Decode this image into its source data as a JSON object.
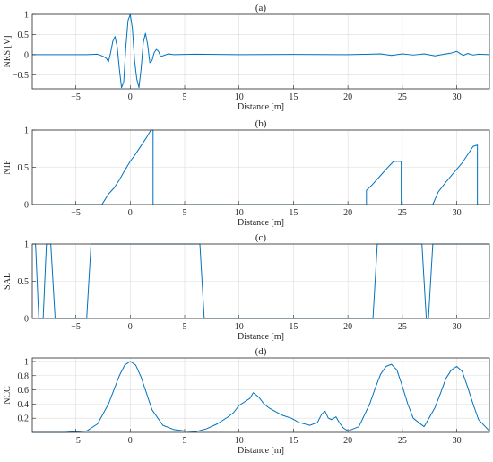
{
  "colors": {
    "series": "#0072BD",
    "axis": "#262626",
    "grid": "#dcdcdc"
  },
  "chart_data": [
    {
      "type": "line",
      "title": "(a)",
      "xlabel": "Distance [m]",
      "ylabel": "NRS [V]",
      "xlim": [
        -9,
        33
      ],
      "ylim": [
        -0.85,
        1.0
      ],
      "xticks": [
        -5,
        0,
        5,
        10,
        15,
        20,
        25,
        30
      ],
      "yticks": [
        -0.5,
        0,
        0.5,
        1
      ],
      "grid": true,
      "series": [
        {
          "x": [
            -9,
            -4,
            -3,
            -2.5,
            -2.2,
            -2.0,
            -1.8,
            -1.6,
            -1.4,
            -1.2,
            -1.0,
            -0.8,
            -0.6,
            -0.4,
            -0.2,
            0,
            0.2,
            0.4,
            0.6,
            0.8,
            1.0,
            1.2,
            1.4,
            1.6,
            1.8,
            2.0,
            2.2,
            2.4,
            2.6,
            2.8,
            3.0,
            3.5,
            4,
            6,
            10,
            15,
            20,
            22,
            23,
            24,
            25,
            26,
            27,
            28,
            29,
            29.5,
            30,
            30.3,
            30.6,
            31,
            31.5,
            32,
            33
          ],
          "y": [
            0,
            0,
            0.01,
            -0.04,
            -0.09,
            -0.18,
            0.05,
            0.33,
            0.45,
            0.2,
            -0.35,
            -0.82,
            -0.68,
            0.2,
            0.85,
            1.0,
            0.65,
            -0.15,
            -0.6,
            -0.82,
            -0.35,
            0.3,
            0.53,
            0.25,
            -0.2,
            -0.15,
            0.05,
            0.13,
            0.08,
            -0.05,
            -0.03,
            0.02,
            0,
            0.01,
            0,
            0.005,
            0,
            0.01,
            0.02,
            -0.02,
            0.02,
            -0.01,
            0.02,
            -0.03,
            0.02,
            0.04,
            0.08,
            0.03,
            -0.02,
            0.03,
            -0.01,
            0.01,
            0
          ]
        }
      ]
    },
    {
      "type": "line",
      "title": "(b)",
      "xlabel": "Distance [m]",
      "ylabel": "NIF",
      "xlim": [
        -9,
        33
      ],
      "ylim": [
        0,
        1
      ],
      "xticks": [
        -5,
        0,
        5,
        10,
        15,
        20,
        25,
        30
      ],
      "yticks": [
        0,
        0.5,
        1
      ],
      "grid": true,
      "series": [
        {
          "x": [
            -9,
            -2.6,
            -2.3,
            -2.0,
            -1.5,
            -1.0,
            -0.5,
            0,
            0.5,
            1.0,
            1.5,
            1.9,
            2.1,
            2.1,
            2.2,
            21.7,
            21.7,
            22.2,
            23.0,
            23.8,
            24.2,
            24.9,
            24.9,
            25.0,
            27.8,
            28.3,
            29.0,
            29.8,
            30.5,
            31.0,
            31.5,
            31.9,
            31.9,
            32.1,
            33
          ],
          "y": [
            0,
            0,
            0.07,
            0.14,
            0.22,
            0.33,
            0.46,
            0.58,
            0.68,
            0.79,
            0.9,
            1.0,
            1.0,
            0.0,
            0.0,
            0.0,
            0.19,
            0.26,
            0.39,
            0.52,
            0.58,
            0.58,
            0.0,
            0.0,
            0.0,
            0.17,
            0.3,
            0.44,
            0.56,
            0.67,
            0.78,
            0.8,
            0.0,
            0.0,
            0
          ]
        }
      ]
    },
    {
      "type": "line",
      "title": "(c)",
      "xlabel": "Distance [m]",
      "ylabel": "SAL",
      "xlim": [
        -9,
        33
      ],
      "ylim": [
        0,
        1
      ],
      "xticks": [
        -5,
        0,
        5,
        10,
        15,
        20,
        25,
        30
      ],
      "yticks": [
        0,
        0.5,
        1
      ],
      "grid": true,
      "series": [
        {
          "x": [
            -9,
            -8.7,
            -8.4,
            -8.0,
            -7.7,
            -7.3,
            -6.9,
            -4.0,
            -3.6,
            6.4,
            6.8,
            22.3,
            22.7,
            26.8,
            27.2,
            27.4,
            27.8,
            33
          ],
          "y": [
            1,
            1,
            0,
            0,
            1,
            1,
            0,
            0,
            1,
            1,
            0,
            0,
            1,
            1,
            0,
            0,
            1,
            1
          ]
        }
      ]
    },
    {
      "type": "line",
      "title": "(d)",
      "xlabel": "Distance [m]",
      "ylabel": "NCC",
      "xlim": [
        -9,
        33
      ],
      "ylim": [
        0,
        1.05
      ],
      "xticks": [
        -5,
        0,
        5,
        10,
        15,
        20,
        25,
        30
      ],
      "yticks": [
        0.2,
        0.4,
        0.6,
        0.8,
        1
      ],
      "grid": true,
      "series": [
        {
          "x": [
            -9,
            -6,
            -4,
            -3,
            -2,
            -1.5,
            -1,
            -0.5,
            0,
            0.5,
            1,
            1.5,
            2,
            3,
            4,
            5,
            6,
            7,
            8,
            9,
            9.5,
            10,
            10.5,
            11,
            11.3,
            11.8,
            12.3,
            12.8,
            13.5,
            14,
            14.8,
            15.5,
            16.5,
            17.2,
            17.6,
            17.9,
            18.2,
            18.5,
            18.9,
            19.2,
            19.6,
            20,
            21,
            22,
            22.5,
            23,
            23.5,
            24,
            24.5,
            25,
            25.5,
            26,
            27,
            28,
            28.5,
            29,
            29.5,
            30,
            30.5,
            31,
            31.5,
            32,
            33
          ],
          "y": [
            0.0,
            0.0,
            0.02,
            0.12,
            0.4,
            0.6,
            0.8,
            0.95,
            1.0,
            0.95,
            0.78,
            0.55,
            0.32,
            0.1,
            0.04,
            0.02,
            0.01,
            0.05,
            0.12,
            0.22,
            0.28,
            0.38,
            0.43,
            0.48,
            0.56,
            0.5,
            0.4,
            0.34,
            0.28,
            0.24,
            0.2,
            0.14,
            0.1,
            0.14,
            0.26,
            0.3,
            0.2,
            0.18,
            0.22,
            0.14,
            0.06,
            0.02,
            0.08,
            0.4,
            0.62,
            0.82,
            0.93,
            0.96,
            0.88,
            0.65,
            0.4,
            0.2,
            0.08,
            0.35,
            0.55,
            0.76,
            0.88,
            0.93,
            0.86,
            0.64,
            0.4,
            0.18,
            0.02
          ]
        }
      ]
    }
  ]
}
